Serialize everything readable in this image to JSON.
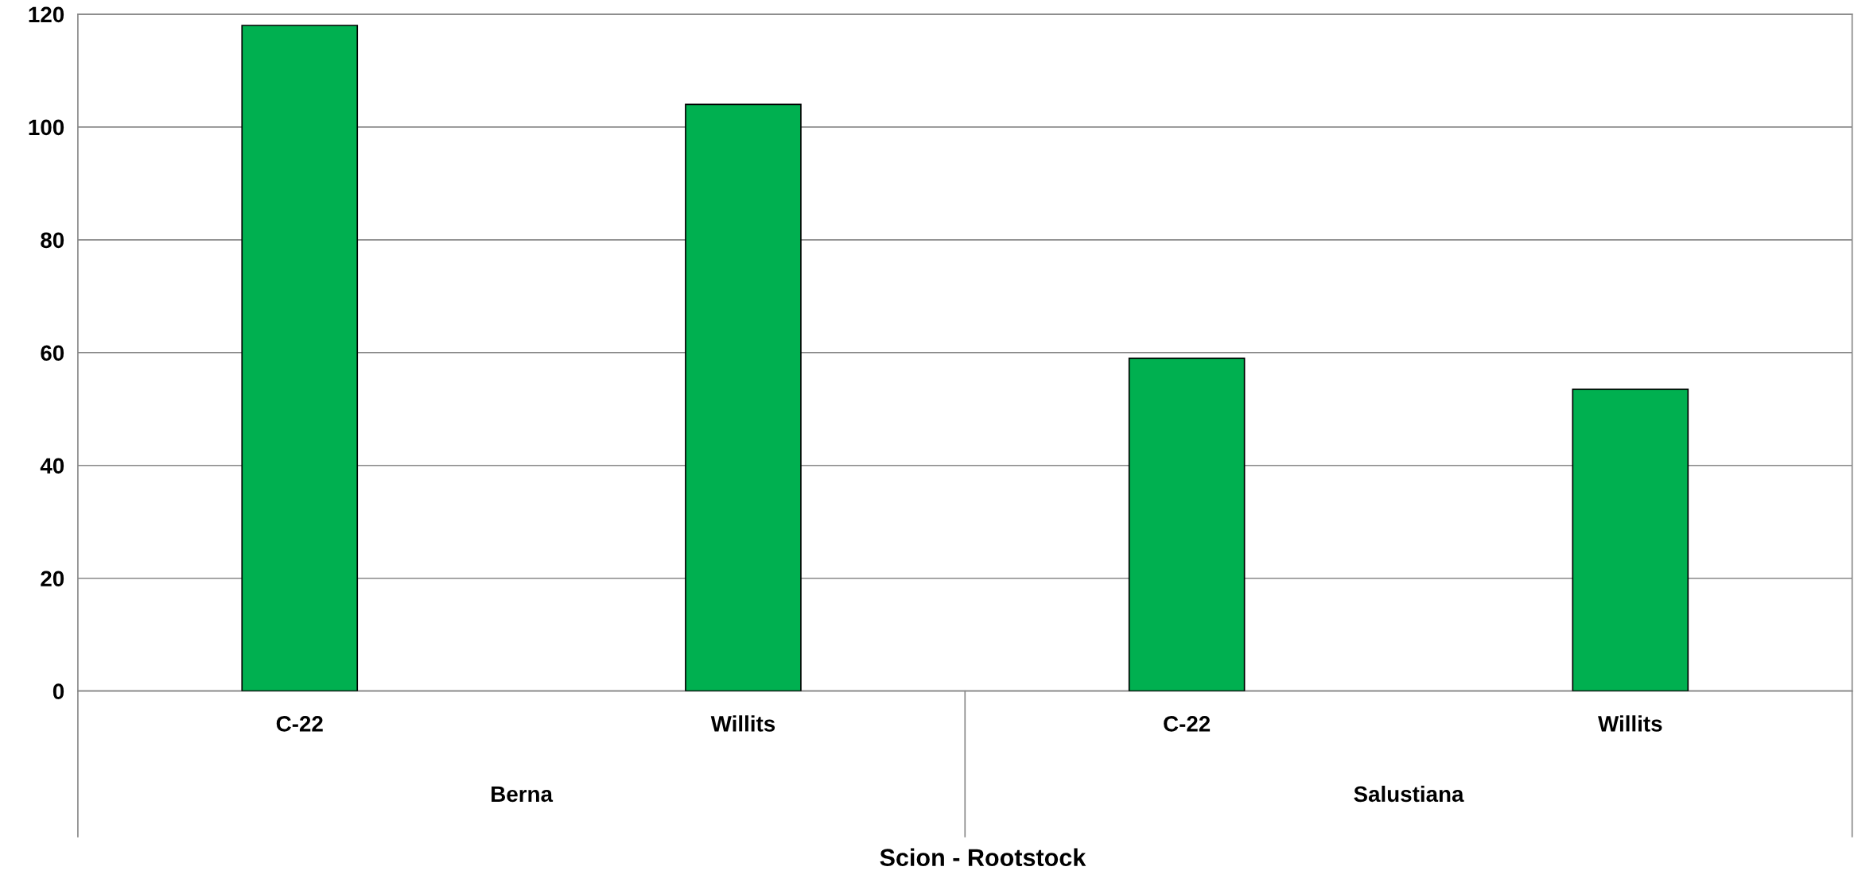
{
  "chart_data": {
    "type": "bar",
    "categories": [
      "C-22",
      "Willits",
      "C-22",
      "Willits"
    ],
    "values": [
      118,
      104,
      59,
      53.5
    ],
    "color": "#00b050",
    "xlabel": "Scion - Rootstock",
    "annotations": [
      "Berna",
      "Salustiana"
    ],
    "ylim": [
      0,
      120
    ],
    "yticks": [
      0,
      20,
      40,
      60,
      80,
      100,
      120
    ],
    "grid": "y",
    "legend": false
  }
}
